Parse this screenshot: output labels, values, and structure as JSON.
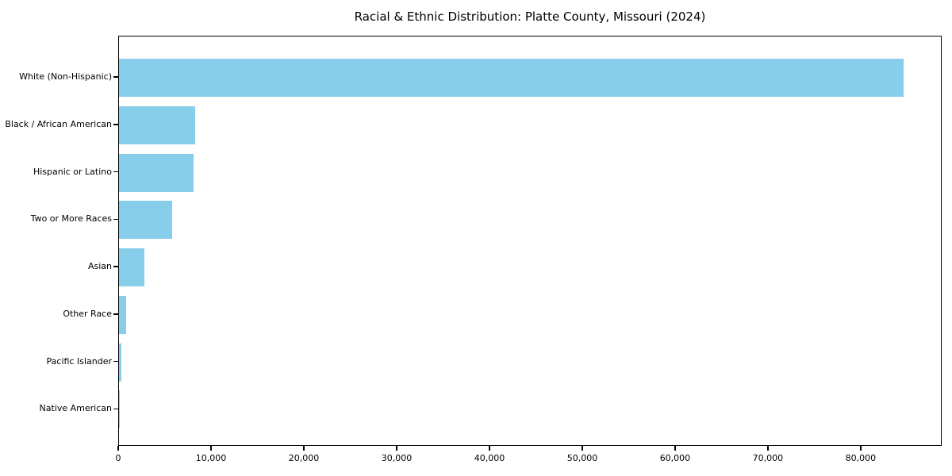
{
  "chart_data": {
    "type": "bar",
    "orientation": "horizontal",
    "title": "Racial & Ethnic Distribution: Platte County, Missouri (2024)",
    "categories": [
      "White (Non-Hispanic)",
      "Black / African American",
      "Hispanic or Latino",
      "Two or More Races",
      "Asian",
      "Other Race",
      "Pacific Islander",
      "Native American"
    ],
    "values": [
      84500,
      8200,
      8000,
      5750,
      2700,
      800,
      250,
      100
    ],
    "xlabel": "",
    "ylabel": "",
    "xlim": [
      0,
      88725
    ],
    "xticks": {
      "values": [
        0,
        10000,
        20000,
        30000,
        40000,
        50000,
        60000,
        70000,
        80000
      ],
      "labels": [
        "0",
        "10,000",
        "20,000",
        "30,000",
        "40,000",
        "50,000",
        "60,000",
        "70,000",
        "80,000"
      ]
    },
    "grid": false,
    "legend": "none",
    "sort_order": "descending"
  },
  "colors": {
    "bar": "#87CEEB",
    "axis": "#000000",
    "background": "#FFFFFF",
    "text": "#000000"
  }
}
